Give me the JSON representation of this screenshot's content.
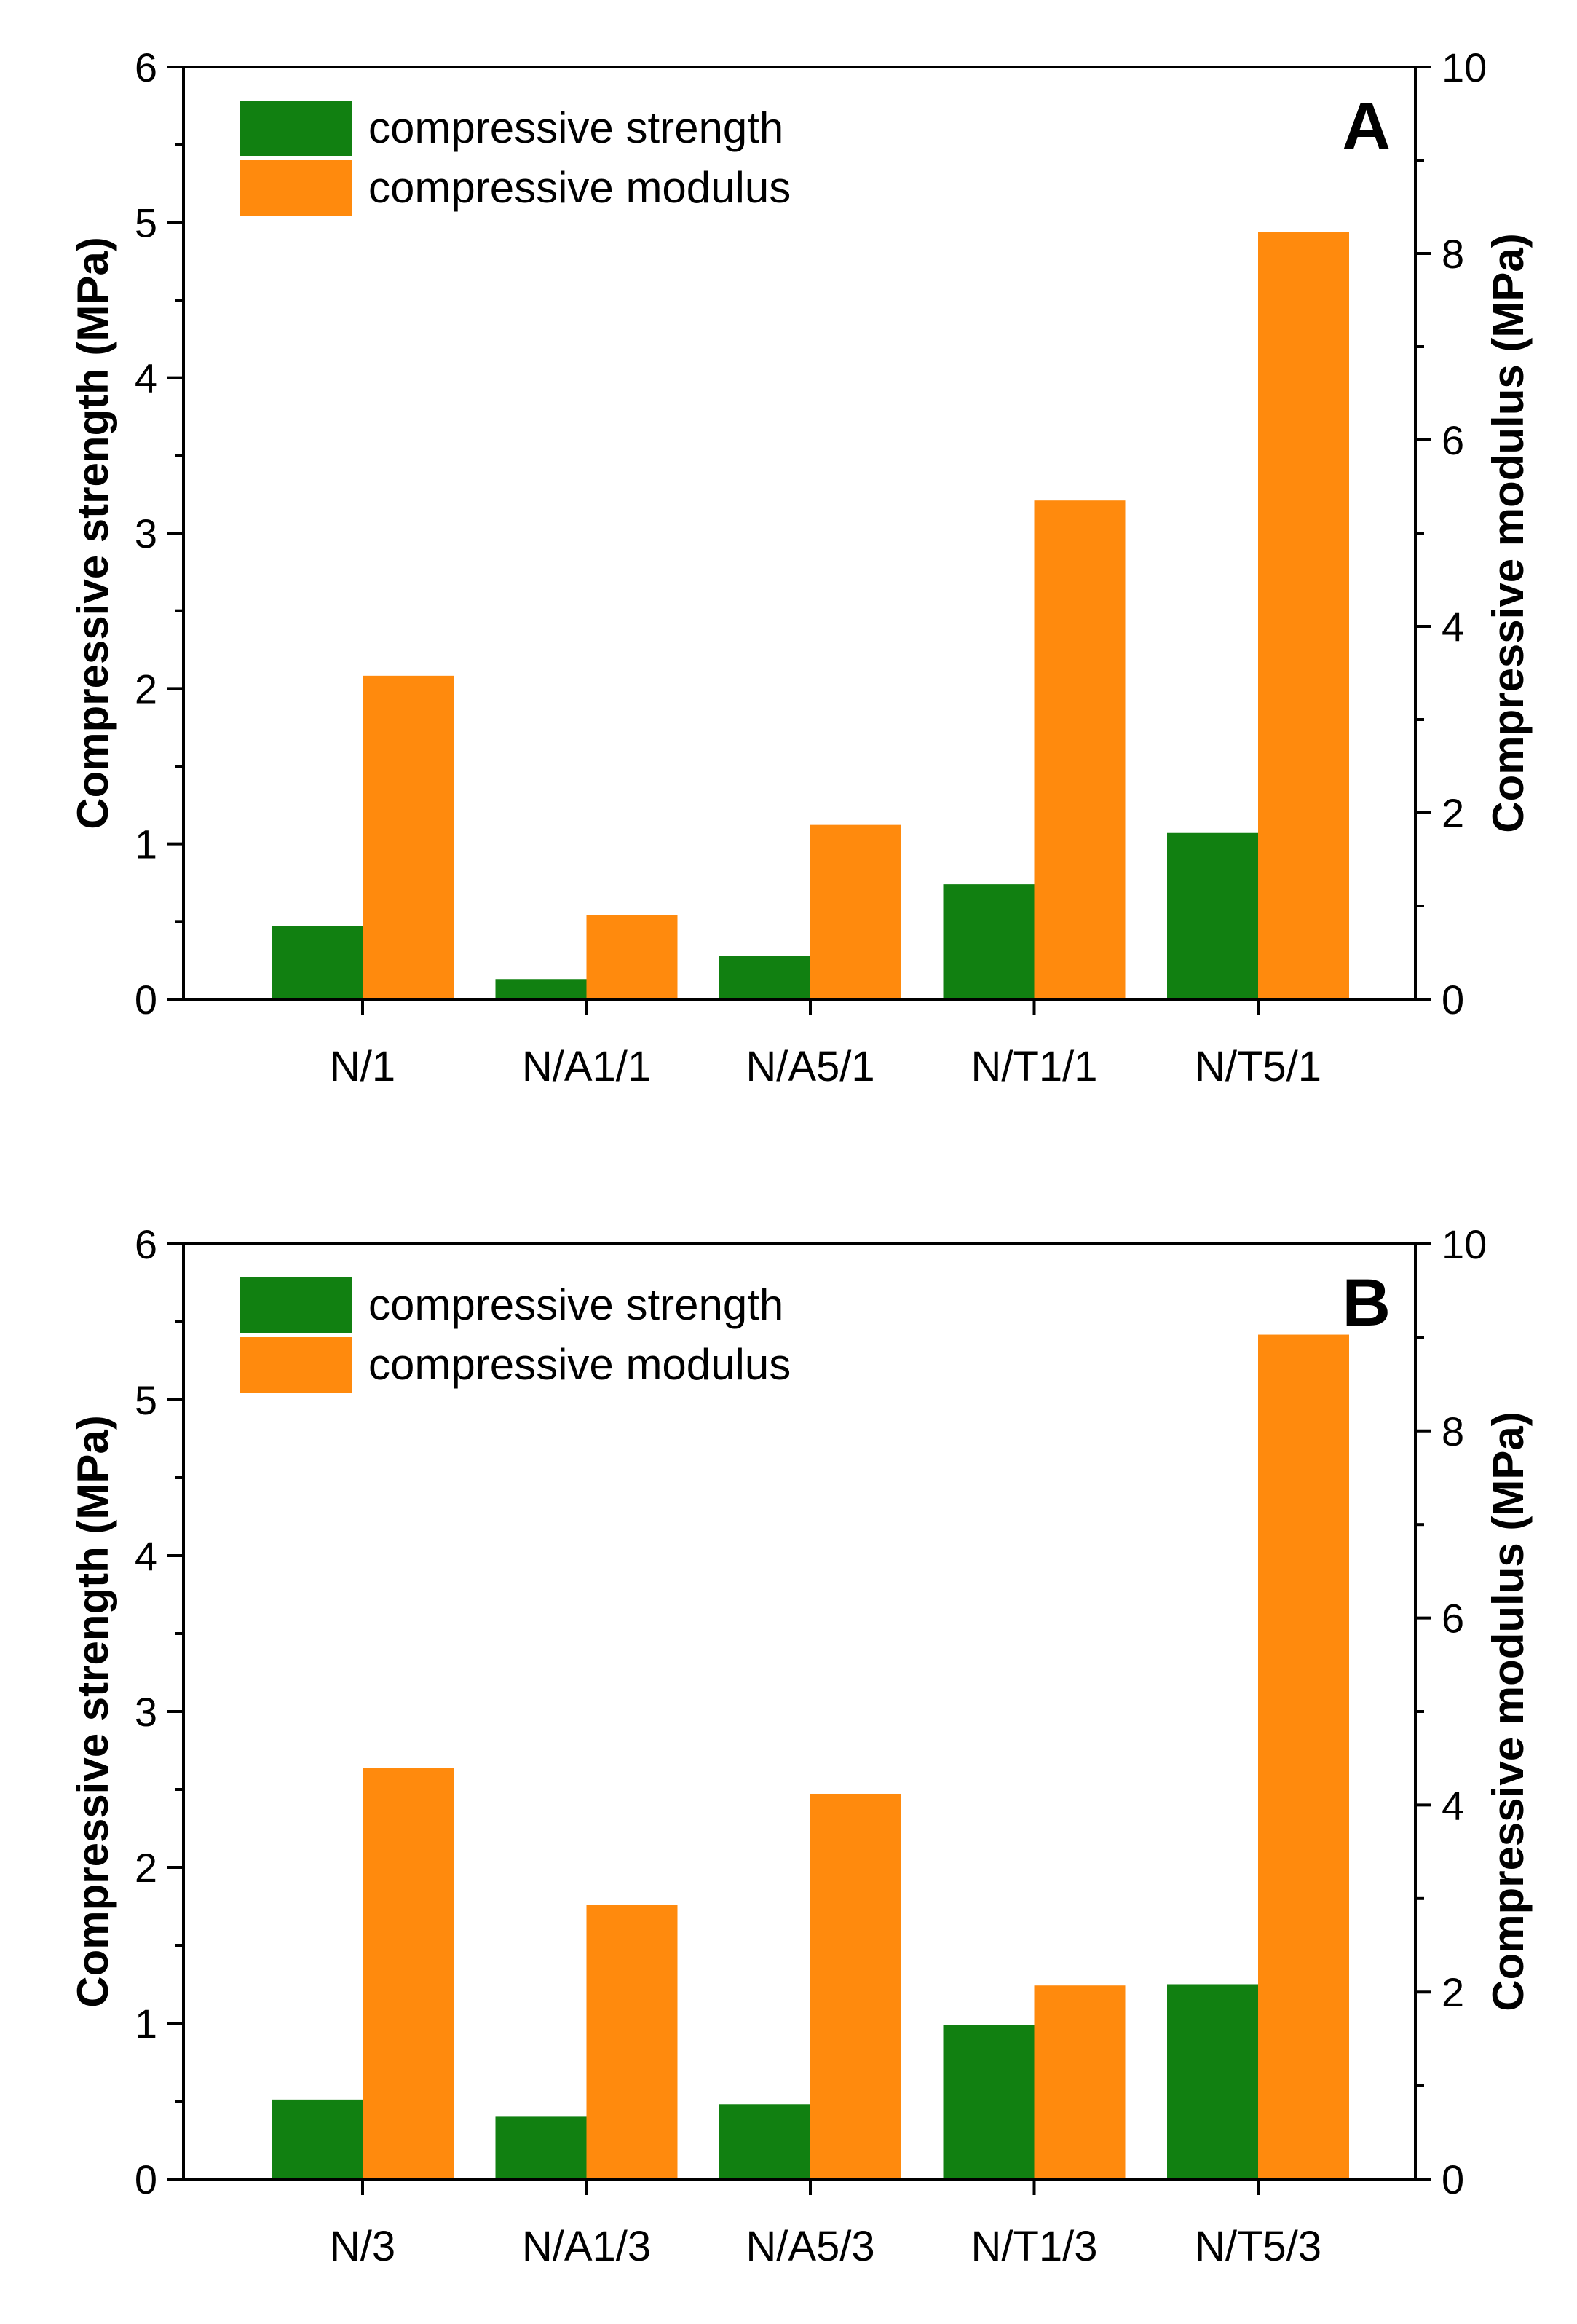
{
  "colors": {
    "compressive_strength": "#118011",
    "compressive_modulus": "#ff8a0d",
    "axis": "#000000"
  },
  "chart_data": [
    {
      "type": "bar",
      "panel_label": "A",
      "categories": [
        "N/1",
        "N/A1/1",
        "N/A5/1",
        "N/T1/1",
        "N/T5/1"
      ],
      "left_axis": {
        "label": "Compressive strength (MPa)",
        "ylim": [
          0,
          6
        ],
        "ticks": [
          0,
          1,
          2,
          3,
          4,
          5,
          6
        ]
      },
      "right_axis": {
        "label": "Compressive modulus (MPa)",
        "ylim": [
          0,
          10
        ],
        "ticks": [
          0,
          2,
          4,
          6,
          8,
          10
        ]
      },
      "legend_position": "top-left",
      "grid": false,
      "series": [
        {
          "name": "compressive strength",
          "axis": "left",
          "values": [
            0.47,
            0.13,
            0.28,
            0.74,
            1.07
          ]
        },
        {
          "name": "compressive modulus",
          "axis": "right",
          "values": [
            3.47,
            0.9,
            1.87,
            5.35,
            8.23
          ]
        }
      ]
    },
    {
      "type": "bar",
      "panel_label": "B",
      "categories": [
        "N/3",
        "N/A1/3",
        "N/A5/3",
        "N/T1/3",
        "N/T5/3"
      ],
      "left_axis": {
        "label": "Compressive strength (MPa)",
        "ylim": [
          0,
          6
        ],
        "ticks": [
          0,
          1,
          2,
          3,
          4,
          5,
          6
        ]
      },
      "right_axis": {
        "label": "Compressive modulus (MPa)",
        "ylim": [
          0,
          10
        ],
        "ticks": [
          0,
          2,
          4,
          6,
          8,
          10
        ]
      },
      "legend_position": "top-left",
      "grid": false,
      "series": [
        {
          "name": "compressive strength",
          "axis": "left",
          "values": [
            0.51,
            0.4,
            0.48,
            0.99,
            1.25
          ]
        },
        {
          "name": "compressive modulus",
          "axis": "right",
          "values": [
            4.4,
            2.93,
            4.12,
            2.07,
            9.03
          ]
        }
      ]
    }
  ]
}
